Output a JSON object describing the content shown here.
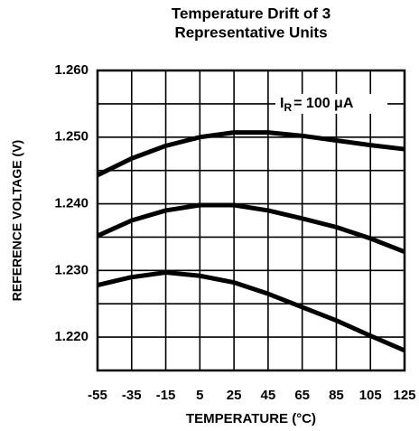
{
  "chart_data": {
    "type": "line",
    "title": [
      "Temperature Drift of 3",
      "Representative Units"
    ],
    "xlabel": "TEMPERATURE (°C)",
    "ylabel": "REFERENCE VOLTAGE (V)",
    "annotation": {
      "main": "I",
      "sub": "R",
      "rest": "= 100 μA"
    },
    "x": [
      -55,
      -35,
      -15,
      5,
      25,
      45,
      65,
      85,
      105,
      125
    ],
    "series": [
      {
        "color": "#000000",
        "values": [
          1.2443,
          1.2468,
          1.2487,
          1.25,
          1.2507,
          1.2507,
          1.2502,
          1.2495,
          1.2488,
          1.2482
        ]
      },
      {
        "color": "#000000",
        "values": [
          1.2352,
          1.2375,
          1.239,
          1.2398,
          1.2398,
          1.239,
          1.2378,
          1.2365,
          1.2348,
          1.2328
        ]
      },
      {
        "color": "#000000",
        "values": [
          1.2278,
          1.229,
          1.2297,
          1.2292,
          1.2282,
          1.2265,
          1.2245,
          1.2225,
          1.2202,
          1.218
        ]
      }
    ],
    "xlim": [
      -55,
      125
    ],
    "xticks": [
      -55,
      -35,
      -15,
      5,
      25,
      45,
      65,
      85,
      105,
      125
    ],
    "ylim": [
      1.215,
      1.26
    ],
    "yticks": [
      {
        "value": 1.26,
        "label": "1.260"
      },
      {
        "value": 1.25,
        "label": "1.250"
      },
      {
        "value": 1.24,
        "label": "1.240"
      },
      {
        "value": 1.23,
        "label": "1.230"
      },
      {
        "value": 1.22,
        "label": "1.220"
      }
    ],
    "ygrid_minor": [
      1.255,
      1.245,
      1.235,
      1.225
    ],
    "grid": true
  }
}
